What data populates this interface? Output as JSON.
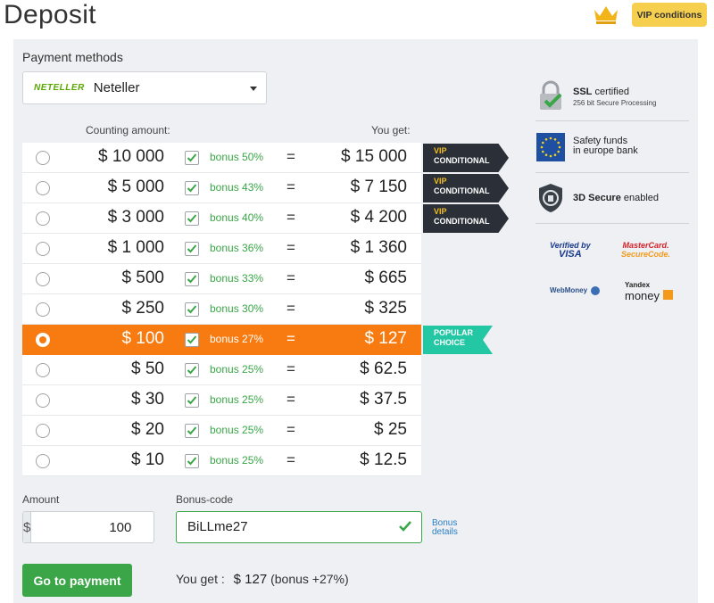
{
  "page": {
    "title": "Deposit",
    "vip_button": "VIP conditions"
  },
  "payment": {
    "label": "Payment methods",
    "logo_text": "NETELLER",
    "selected": "Neteller"
  },
  "table": {
    "col_counting": "Counting amount:",
    "col_get": "You get:",
    "rows": [
      {
        "amount": "$ 10 000",
        "bonus": "bonus 50%",
        "eq": "=",
        "get": "$ 15 000",
        "ribbon": "vip"
      },
      {
        "amount": "$ 5 000",
        "bonus": "bonus 43%",
        "eq": "=",
        "get": "$ 7 150",
        "ribbon": "vip"
      },
      {
        "amount": "$ 3 000",
        "bonus": "bonus 40%",
        "eq": "=",
        "get": "$ 4 200",
        "ribbon": "vip"
      },
      {
        "amount": "$ 1 000",
        "bonus": "bonus 36%",
        "eq": "=",
        "get": "$ 1 360",
        "ribbon": ""
      },
      {
        "amount": "$ 500",
        "bonus": "bonus 33%",
        "eq": "=",
        "get": "$ 665",
        "ribbon": ""
      },
      {
        "amount": "$ 250",
        "bonus": "bonus 30%",
        "eq": "=",
        "get": "$ 325",
        "ribbon": ""
      },
      {
        "amount": "$ 100",
        "bonus": "bonus 27%",
        "eq": "=",
        "get": "$ 127",
        "ribbon": "popular",
        "selected": true
      },
      {
        "amount": "$ 50",
        "bonus": "bonus 25%",
        "eq": "=",
        "get": "$ 62.5",
        "ribbon": ""
      },
      {
        "amount": "$ 30",
        "bonus": "bonus 25%",
        "eq": "=",
        "get": "$ 37.5",
        "ribbon": ""
      },
      {
        "amount": "$ 20",
        "bonus": "bonus 25%",
        "eq": "=",
        "get": "$ 25",
        "ribbon": ""
      },
      {
        "amount": "$ 10",
        "bonus": "bonus 25%",
        "eq": "=",
        "get": "$ 12.5",
        "ribbon": ""
      }
    ],
    "vip_ribbon": {
      "line1": "VIP",
      "line2": "CONDITIONAL"
    },
    "popular_ribbon": {
      "line1": "POPULAR",
      "line2": "CHOICE"
    }
  },
  "amount": {
    "label": "Amount",
    "prefix": "$",
    "value": "100"
  },
  "bonus_code": {
    "label": "Bonus-code",
    "value": "BiLLme27",
    "details_line1": "Bonus",
    "details_line2": "details"
  },
  "footer": {
    "pay_button": "Go to payment",
    "you_get_label": "You get :",
    "you_get_value": "$ 127",
    "you_get_bonus": "(bonus +27%)"
  },
  "security": {
    "ssl_title": "SSL",
    "ssl_title_rest": "certified",
    "ssl_sub": "256 bit Secure Processing",
    "eu_line1": "Safety funds",
    "eu_line2": "in europe bank",
    "secure_title": "3D Secure",
    "secure_rest": "enabled",
    "logos": {
      "visa_1": "Verified by",
      "visa_2": "VISA",
      "mc_1": "MasterCard.",
      "mc_2": "SecureCode.",
      "webmoney": "WebMoney",
      "yandex_1": "Yandex",
      "yandex_2": "money"
    }
  },
  "colors": {
    "accent_orange": "#f77b11",
    "green": "#3aa648",
    "vip_yellow": "#f7cf4f",
    "popular_teal": "#23c7a3",
    "dark_ribbon": "#2b3038"
  },
  "icons": [
    "crown-icon",
    "chevron-down-icon",
    "checkbox-check-icon",
    "lock-icon",
    "eu-flag-icon",
    "shield-icon",
    "check-icon"
  ]
}
